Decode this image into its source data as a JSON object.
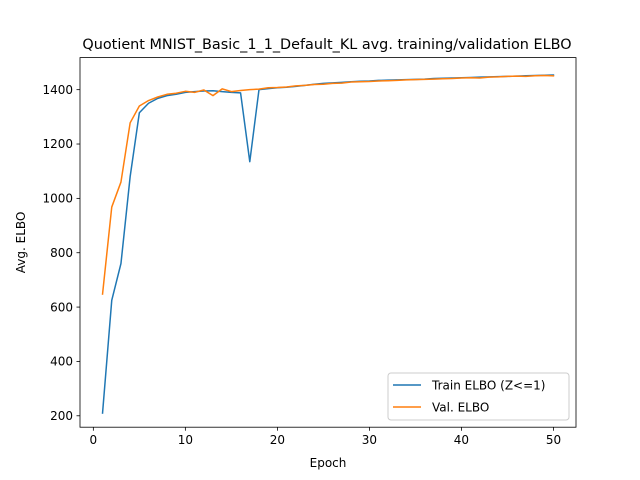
{
  "chart_data": {
    "type": "line",
    "title": "Quotient MNIST_Basic_1_1_Default_KL avg. training/validation ELBO",
    "xlabel": "Epoch",
    "ylabel": "Avg. ELBO",
    "xlim": [
      -1.45,
      52.45
    ],
    "ylim": [
      158,
      1518
    ],
    "xticks": [
      0,
      10,
      20,
      30,
      40,
      50
    ],
    "yticks": [
      200,
      400,
      600,
      800,
      1000,
      1200,
      1400
    ],
    "grid": false,
    "legend_position": "lower-right",
    "x": [
      1,
      2,
      3,
      4,
      5,
      6,
      7,
      8,
      9,
      10,
      11,
      12,
      13,
      14,
      15,
      16,
      17,
      18,
      19,
      20,
      21,
      22,
      23,
      24,
      25,
      26,
      27,
      28,
      29,
      30,
      31,
      32,
      33,
      34,
      35,
      36,
      37,
      38,
      39,
      40,
      41,
      42,
      43,
      44,
      45,
      46,
      47,
      48,
      49,
      50
    ],
    "series": [
      {
        "name": "Train ELBO (Z<=1)",
        "color": "#1f77b4",
        "values": [
          210,
          625,
          760,
          1080,
          1315,
          1350,
          1368,
          1378,
          1383,
          1390,
          1393,
          1395,
          1396,
          1393,
          1390,
          1388,
          1135,
          1400,
          1404,
          1407,
          1409,
          1412,
          1416,
          1420,
          1423,
          1425,
          1427,
          1429,
          1431,
          1432,
          1434,
          1435,
          1436,
          1437,
          1438,
          1439,
          1441,
          1442,
          1443,
          1444,
          1445,
          1446,
          1447,
          1448,
          1449,
          1450,
          1451,
          1452,
          1453,
          1454
        ]
      },
      {
        "name": "Val. ELBO",
        "color": "#ff7f0e",
        "values": [
          648,
          968,
          1060,
          1278,
          1340,
          1360,
          1373,
          1383,
          1387,
          1394,
          1390,
          1399,
          1378,
          1403,
          1393,
          1397,
          1400,
          1402,
          1407,
          1408,
          1410,
          1414,
          1416,
          1419,
          1420,
          1423,
          1424,
          1428,
          1429,
          1430,
          1432,
          1433,
          1434,
          1436,
          1437,
          1438,
          1439,
          1440,
          1441,
          1443,
          1444,
          1443,
          1446,
          1447,
          1449,
          1450,
          1449,
          1451,
          1452,
          1451
        ]
      }
    ]
  }
}
